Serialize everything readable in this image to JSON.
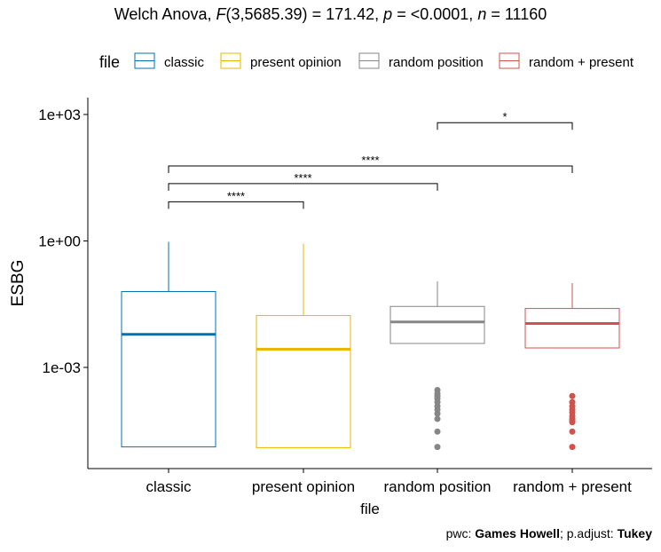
{
  "chart_data": {
    "type": "boxplot",
    "title": {
      "test": "Welch Anova,",
      "stat_symbol": "F",
      "df": "(3,5685.39)",
      "stat_value": "= 171.42,",
      "p_symbol": "p",
      "p_value": "= <0.0001,",
      "n_symbol": "n",
      "n_value": "= 11160"
    },
    "legend": {
      "title": "file",
      "position": "top",
      "entries": [
        "classic",
        "present opinion",
        "random position",
        "random + present"
      ]
    },
    "xlabel": "file",
    "ylabel": "ESBG",
    "y_scale": "log10",
    "y_ticks": [
      "1e+03",
      "1e+00",
      "1e-03"
    ],
    "y_tick_values": [
      1000,
      1,
      0.001
    ],
    "ylim": [
      4.5e-06,
      12000
    ],
    "categories": [
      "classic",
      "present opinion",
      "random position",
      "random + present"
    ],
    "colors": [
      "#0072B2",
      "#E7B800",
      "#868686",
      "#CD534C"
    ],
    "boxes": [
      {
        "name": "classic",
        "min": 1.3e-05,
        "q1": 1.3e-05,
        "median": 0.0061,
        "q3": 0.063,
        "max": 0.95,
        "outliers": []
      },
      {
        "name": "present opinion",
        "min": 1.25e-05,
        "q1": 1.25e-05,
        "median": 0.0027,
        "q3": 0.017,
        "max": 0.86,
        "outliers": []
      },
      {
        "name": "random position",
        "min": 0.0037,
        "q1": 0.0037,
        "median": 0.012,
        "q3": 0.028,
        "max": 0.11,
        "outliers": [
          0.00029,
          0.00024,
          0.00021,
          0.00018,
          0.00015,
          0.00012,
          0.0001,
          8e-05,
          6e-05,
          3e-05,
          1.3e-05
        ]
      },
      {
        "name": "random + present",
        "min": 0.0029,
        "q1": 0.0029,
        "median": 0.011,
        "q3": 0.025,
        "max": 0.1,
        "outliers": [
          0.00021,
          0.00015,
          0.00012,
          0.0001,
          8.5e-05,
          7e-05,
          6e-05,
          5.5e-05,
          5e-05,
          3e-05,
          1.3e-05
        ]
      }
    ],
    "comparisons": [
      {
        "from": "random position",
        "to": "random + present",
        "label": "*",
        "y": 640
      },
      {
        "from": "classic",
        "to": "random + present",
        "label": "****",
        "y": 60
      },
      {
        "from": "classic",
        "to": "random position",
        "label": "****",
        "y": 23
      },
      {
        "from": "classic",
        "to": "present opinion",
        "label": "****",
        "y": 8.5
      }
    ],
    "caption": {
      "pwc_label": "pwc:",
      "pwc_method": "Games Howell",
      "sep": ";",
      "adjust_label": "p.adjust:",
      "adjust_method": "Tukey"
    }
  }
}
